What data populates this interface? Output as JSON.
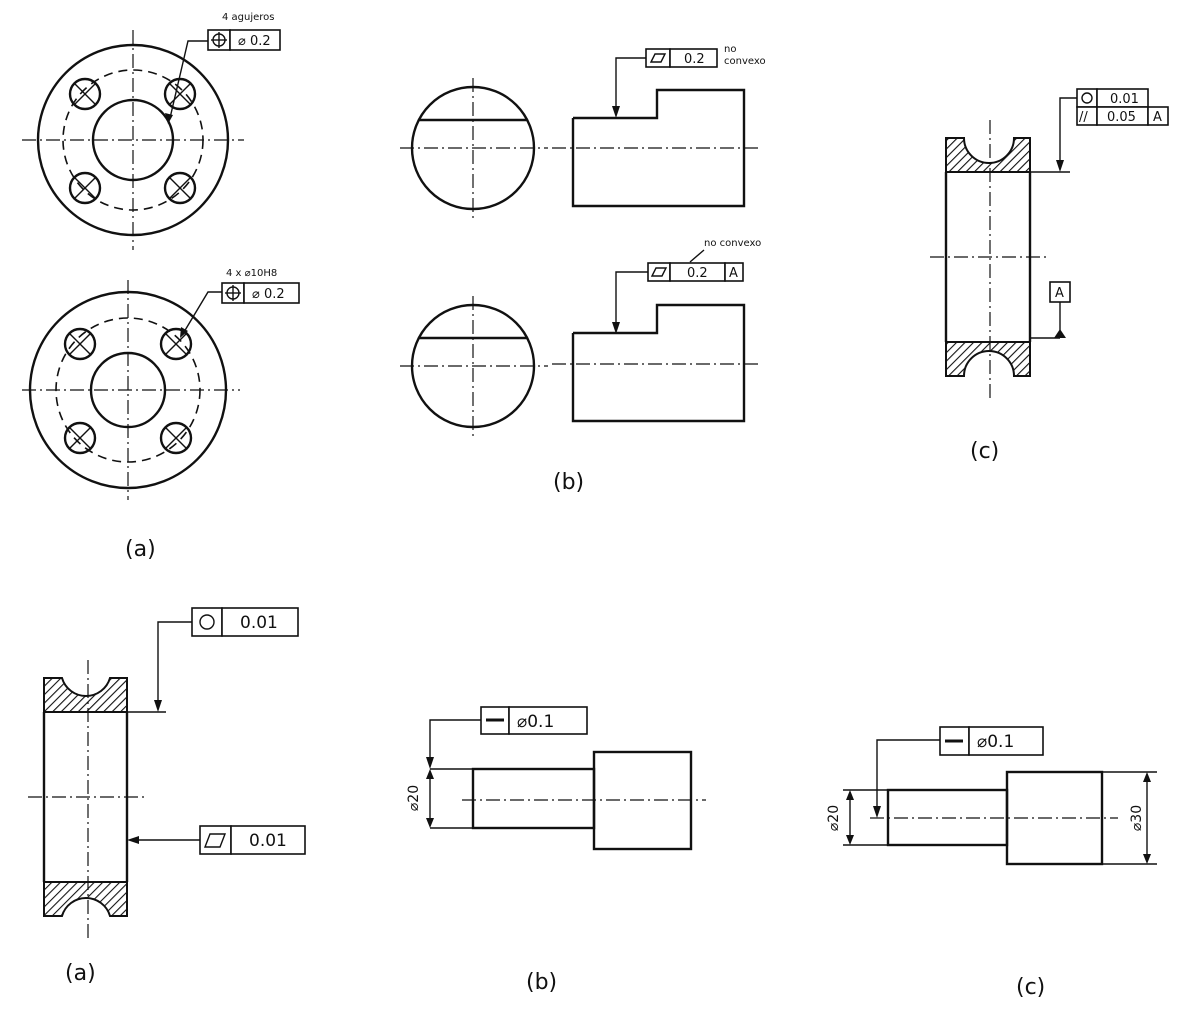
{
  "top": {
    "a": {
      "caption": "(a)",
      "note1": "4 agujeros",
      "frame1_value": "⌀ 0.2",
      "note2": "4 x ⌀10H8",
      "frame2_value": "⌀ 0.2",
      "icon": "position-icon"
    },
    "b": {
      "caption": "(b)",
      "note1_l1": "no",
      "note1_l2": "convexo",
      "frame1_value": "0.2",
      "note2": "no convexo",
      "frame2_value": "0.2",
      "frame2_datum": "A",
      "icon": "flatness-icon"
    },
    "c": {
      "caption": "(c)",
      "row1_value": "0.01",
      "row2_symbol": "//",
      "row2_value": "0.05",
      "row2_datum": "A",
      "datum_label": "A",
      "icons": [
        "circularity-icon",
        "parallelism-icon"
      ]
    }
  },
  "bottom": {
    "a": {
      "caption": "(a)",
      "frame1_value": "0.01",
      "frame2_value": "0.01",
      "icons": [
        "circularity-icon",
        "flatness-icon"
      ]
    },
    "b": {
      "caption": "(b)",
      "frame_value": "⌀0.1",
      "dim_label": "⌀20",
      "icon": "straightness-icon"
    },
    "c": {
      "caption": "(c)",
      "frame_value": "⌀0.1",
      "dim_left": "⌀20",
      "dim_right": "⌀30",
      "icon": "straightness-icon"
    }
  }
}
